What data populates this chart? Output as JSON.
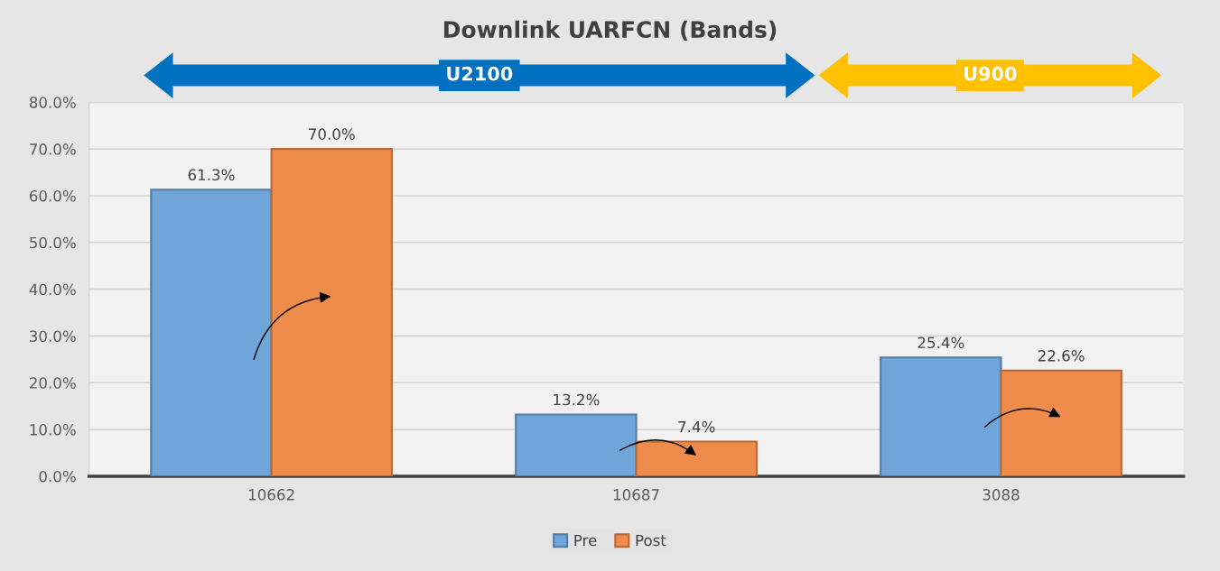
{
  "chart_data": {
    "type": "bar",
    "title": "Downlink UARFCN (Bands)",
    "categories": [
      "10662",
      "10687",
      "3088"
    ],
    "series": [
      {
        "name": "Pre",
        "color": "#6fa5d9",
        "values": [
          61.3,
          13.2,
          25.4
        ],
        "value_labels": [
          "61.3%",
          "13.2%",
          "25.4%"
        ]
      },
      {
        "name": "Post",
        "color": "#f08c4b",
        "values": [
          70.0,
          7.4,
          22.6
        ],
        "value_labels": [
          "70.0%",
          "7.4%",
          "22.6%"
        ]
      }
    ],
    "ylim": [
      0,
      80
    ],
    "yticks": [
      {
        "value": 0,
        "label": "0.0%"
      },
      {
        "value": 10,
        "label": "10.0%"
      },
      {
        "value": 20,
        "label": "20.0%"
      },
      {
        "value": 30,
        "label": "30.0%"
      },
      {
        "value": 40,
        "label": "40.0%"
      },
      {
        "value": 50,
        "label": "50.0%"
      },
      {
        "value": 60,
        "label": "60.0%"
      },
      {
        "value": 70,
        "label": "70.0%"
      },
      {
        "value": 80,
        "label": "80.0%"
      }
    ],
    "grid": "y",
    "legend": "bottom",
    "annotations": [
      "U2100",
      "U900"
    ]
  }
}
